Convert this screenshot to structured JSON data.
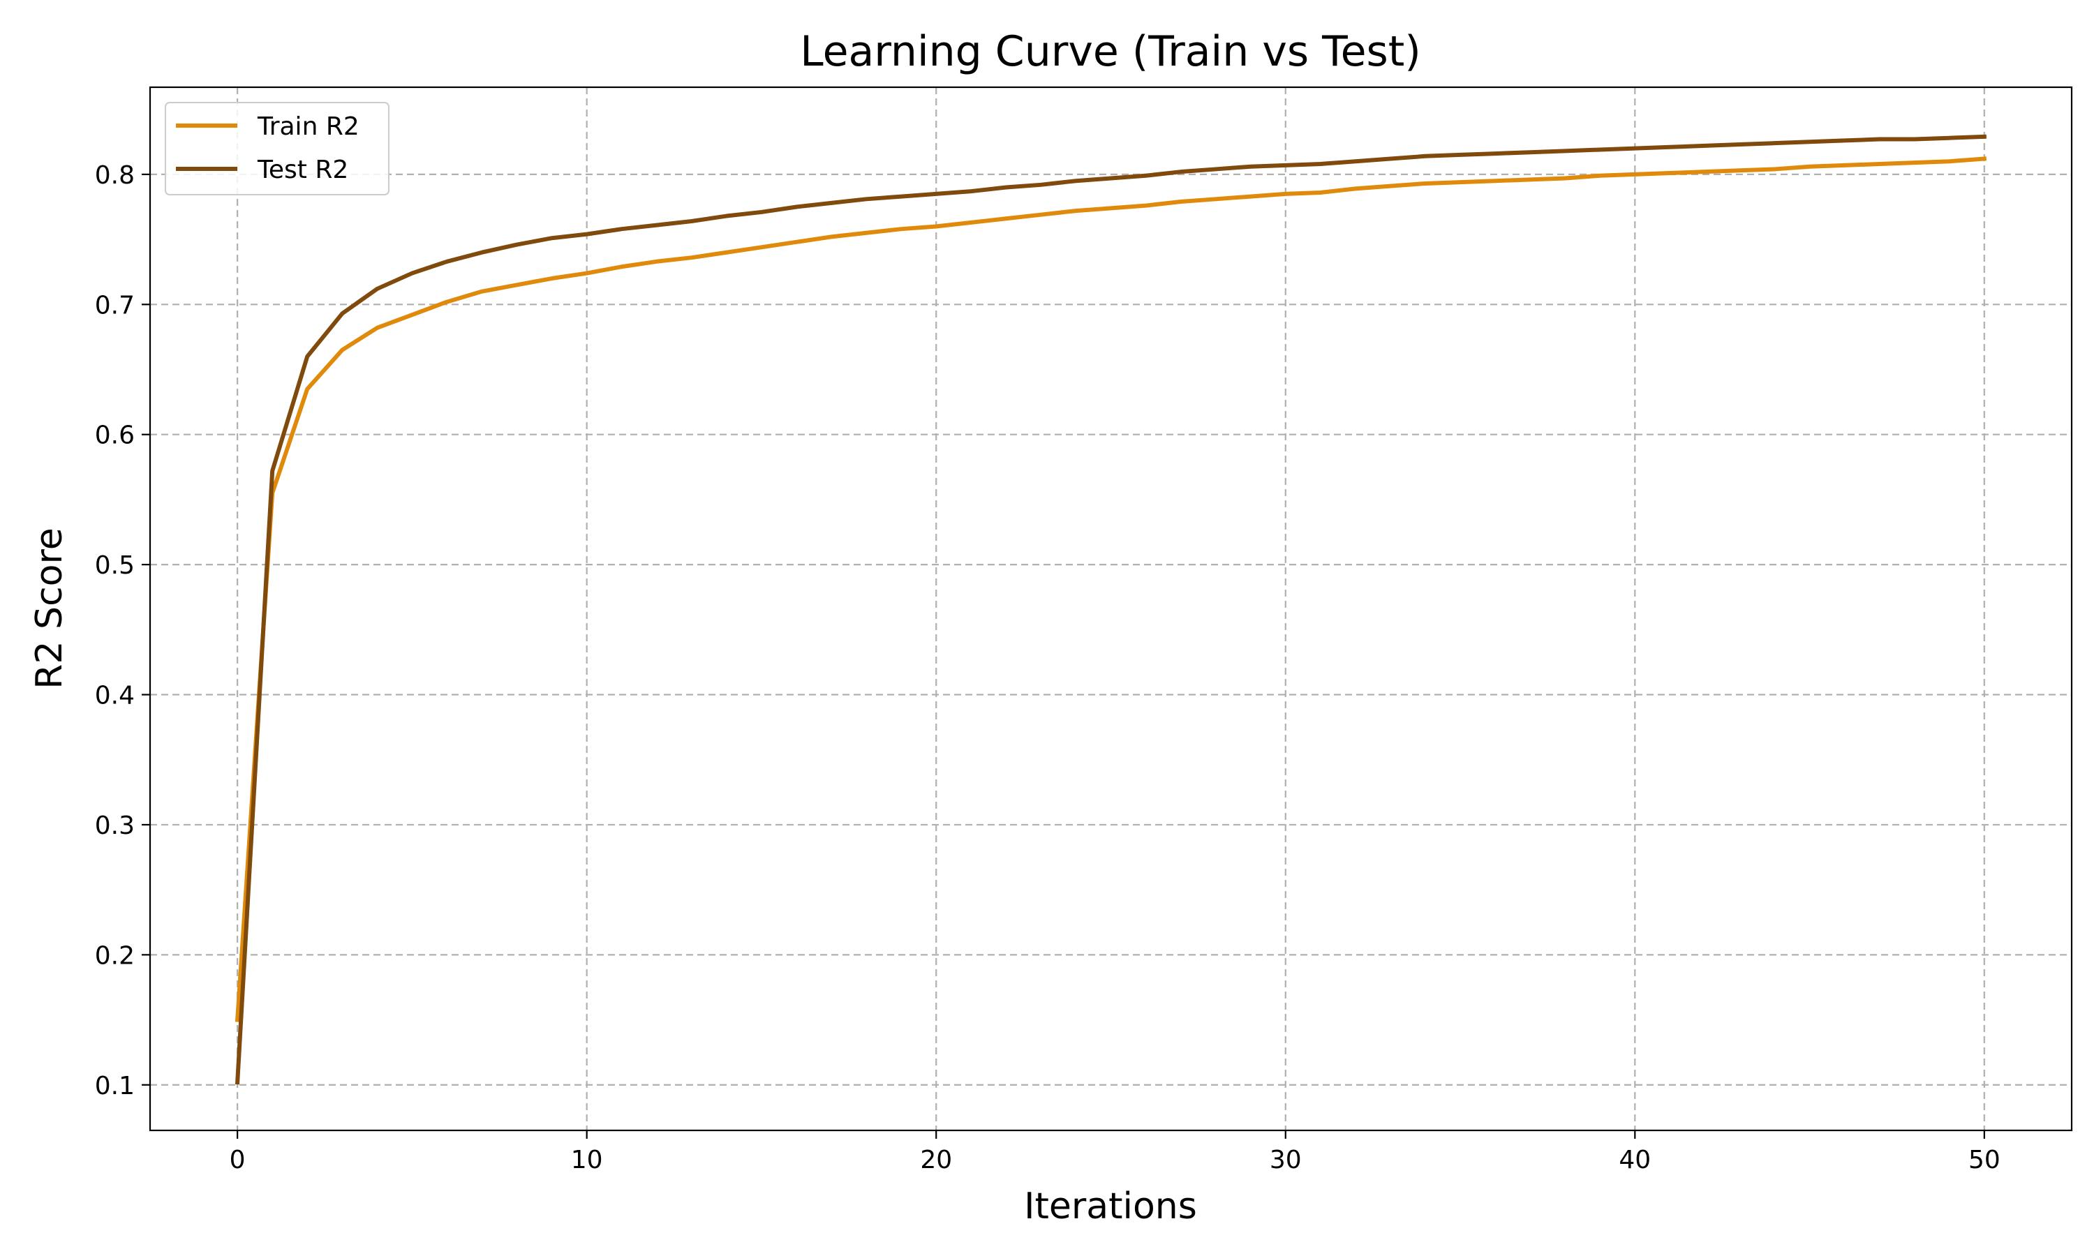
{
  "chart_data": {
    "type": "line",
    "title": "Learning Curve (Train vs Test)",
    "xlabel": "Iterations",
    "ylabel": "R2 Score",
    "xlim": [
      -2.5,
      52.5
    ],
    "ylim": [
      0.065,
      0.867
    ],
    "xticks": [
      0,
      10,
      20,
      30,
      40,
      50
    ],
    "yticks": [
      0.1,
      0.2,
      0.3,
      0.4,
      0.5,
      0.6,
      0.7,
      0.8
    ],
    "xtick_labels": [
      "0",
      "10",
      "20",
      "30",
      "40",
      "50"
    ],
    "ytick_labels": [
      "0.1",
      "0.2",
      "0.3",
      "0.4",
      "0.5",
      "0.6",
      "0.7",
      "0.8"
    ],
    "grid": true,
    "legend_position": "top-left",
    "x": [
      0,
      1,
      2,
      3,
      4,
      5,
      6,
      7,
      8,
      9,
      10,
      11,
      12,
      13,
      14,
      15,
      16,
      17,
      18,
      19,
      20,
      21,
      22,
      23,
      24,
      25,
      26,
      27,
      28,
      29,
      30,
      31,
      32,
      33,
      34,
      35,
      36,
      37,
      38,
      39,
      40,
      41,
      42,
      43,
      44,
      45,
      46,
      47,
      48,
      49,
      50
    ],
    "series": [
      {
        "name": "Train R2",
        "color": "#e08a0b",
        "values": [
          0.15,
          0.555,
          0.635,
          0.665,
          0.682,
          0.692,
          0.702,
          0.71,
          0.715,
          0.72,
          0.724,
          0.729,
          0.733,
          0.736,
          0.74,
          0.744,
          0.748,
          0.752,
          0.755,
          0.758,
          0.76,
          0.763,
          0.766,
          0.769,
          0.772,
          0.774,
          0.776,
          0.779,
          0.781,
          0.783,
          0.785,
          0.786,
          0.789,
          0.791,
          0.793,
          0.794,
          0.795,
          0.796,
          0.797,
          0.799,
          0.8,
          0.801,
          0.802,
          0.803,
          0.804,
          0.806,
          0.807,
          0.808,
          0.809,
          0.81,
          0.812
        ]
      },
      {
        "name": "Test R2",
        "color": "#7f4a0c",
        "values": [
          0.102,
          0.572,
          0.66,
          0.693,
          0.712,
          0.724,
          0.733,
          0.74,
          0.746,
          0.751,
          0.754,
          0.758,
          0.761,
          0.764,
          0.768,
          0.771,
          0.775,
          0.778,
          0.781,
          0.783,
          0.785,
          0.787,
          0.79,
          0.792,
          0.795,
          0.797,
          0.799,
          0.802,
          0.804,
          0.806,
          0.807,
          0.808,
          0.81,
          0.812,
          0.814,
          0.815,
          0.816,
          0.817,
          0.818,
          0.819,
          0.82,
          0.821,
          0.822,
          0.823,
          0.824,
          0.825,
          0.826,
          0.827,
          0.827,
          0.828,
          0.829
        ]
      }
    ]
  }
}
